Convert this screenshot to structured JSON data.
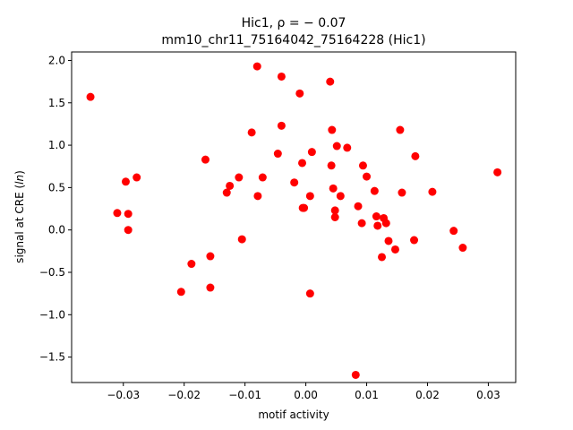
{
  "chart_data": {
    "type": "scatter",
    "title_line1": "Hic1, ρ = − 0.07",
    "title_line2": "mm10_chr11_75164042_75164228 (Hic1)",
    "xlabel": "motif activity",
    "ylabel": "signal at CRE (ln)",
    "xlim": [
      -0.0385,
      0.0345
    ],
    "ylim": [
      -1.8,
      2.1
    ],
    "xticks": [
      -0.03,
      -0.02,
      -0.01,
      0.0,
      0.01,
      0.02,
      0.03
    ],
    "xtick_labels": [
      "−0.03",
      "−0.02",
      "−0.01",
      "0.00",
      "0.01",
      "0.02",
      "0.03"
    ],
    "yticks": [
      -1.5,
      -1.0,
      -0.5,
      0.0,
      0.5,
      1.0,
      1.5,
      2.0
    ],
    "ytick_labels": [
      "−1.5",
      "−1.0",
      "−0.5",
      "0.0",
      "0.5",
      "1.0",
      "1.5",
      "2.0"
    ],
    "marker_color": "#ff0000",
    "grid": false,
    "points": [
      {
        "x": -0.0354,
        "y": 1.57
      },
      {
        "x": -0.031,
        "y": 0.2
      },
      {
        "x": -0.0296,
        "y": 0.57
      },
      {
        "x": -0.0292,
        "y": 0.19
      },
      {
        "x": -0.0292,
        "y": 0.0
      },
      {
        "x": -0.0278,
        "y": 0.62
      },
      {
        "x": -0.0205,
        "y": -0.73
      },
      {
        "x": -0.0188,
        "y": -0.4
      },
      {
        "x": -0.0165,
        "y": 0.83
      },
      {
        "x": -0.0157,
        "y": -0.31
      },
      {
        "x": -0.0157,
        "y": -0.68
      },
      {
        "x": -0.013,
        "y": 0.44
      },
      {
        "x": -0.0125,
        "y": 0.52
      },
      {
        "x": -0.011,
        "y": 0.62
      },
      {
        "x": -0.0105,
        "y": -0.11
      },
      {
        "x": -0.0089,
        "y": 1.15
      },
      {
        "x": -0.008,
        "y": 1.93
      },
      {
        "x": -0.0079,
        "y": 0.4
      },
      {
        "x": -0.0071,
        "y": 0.62
      },
      {
        "x": -0.0046,
        "y": 0.9
      },
      {
        "x": -0.004,
        "y": 1.81
      },
      {
        "x": -0.004,
        "y": 1.23
      },
      {
        "x": -0.0019,
        "y": 0.56
      },
      {
        "x": -0.001,
        "y": 1.61
      },
      {
        "x": -0.0006,
        "y": 0.79
      },
      {
        "x": -0.0005,
        "y": 0.26
      },
      {
        "x": -0.0003,
        "y": 0.26
      },
      {
        "x": 0.0007,
        "y": 0.4
      },
      {
        "x": 0.0007,
        "y": -0.75
      },
      {
        "x": 0.001,
        "y": 0.92
      },
      {
        "x": 0.004,
        "y": 1.75
      },
      {
        "x": 0.0042,
        "y": 0.76
      },
      {
        "x": 0.0043,
        "y": 1.18
      },
      {
        "x": 0.0045,
        "y": 0.49
      },
      {
        "x": 0.0048,
        "y": 0.23
      },
      {
        "x": 0.0048,
        "y": 0.15
      },
      {
        "x": 0.0051,
        "y": 0.99
      },
      {
        "x": 0.0057,
        "y": 0.4
      },
      {
        "x": 0.0068,
        "y": 0.97
      },
      {
        "x": 0.0082,
        "y": -1.71
      },
      {
        "x": 0.0086,
        "y": 0.28
      },
      {
        "x": 0.0092,
        "y": 0.08
      },
      {
        "x": 0.0094,
        "y": 0.76
      },
      {
        "x": 0.01,
        "y": 0.63
      },
      {
        "x": 0.0113,
        "y": 0.46
      },
      {
        "x": 0.0116,
        "y": 0.16
      },
      {
        "x": 0.0118,
        "y": 0.05
      },
      {
        "x": 0.0125,
        "y": -0.32
      },
      {
        "x": 0.0128,
        "y": 0.14
      },
      {
        "x": 0.0132,
        "y": 0.08
      },
      {
        "x": 0.0136,
        "y": -0.13
      },
      {
        "x": 0.0147,
        "y": -0.23
      },
      {
        "x": 0.0155,
        "y": 1.18
      },
      {
        "x": 0.0158,
        "y": 0.44
      },
      {
        "x": 0.0178,
        "y": -0.12
      },
      {
        "x": 0.018,
        "y": 0.87
      },
      {
        "x": 0.0208,
        "y": 0.45
      },
      {
        "x": 0.0243,
        "y": -0.01
      },
      {
        "x": 0.0258,
        "y": -0.21
      },
      {
        "x": 0.0315,
        "y": 0.68
      }
    ]
  }
}
